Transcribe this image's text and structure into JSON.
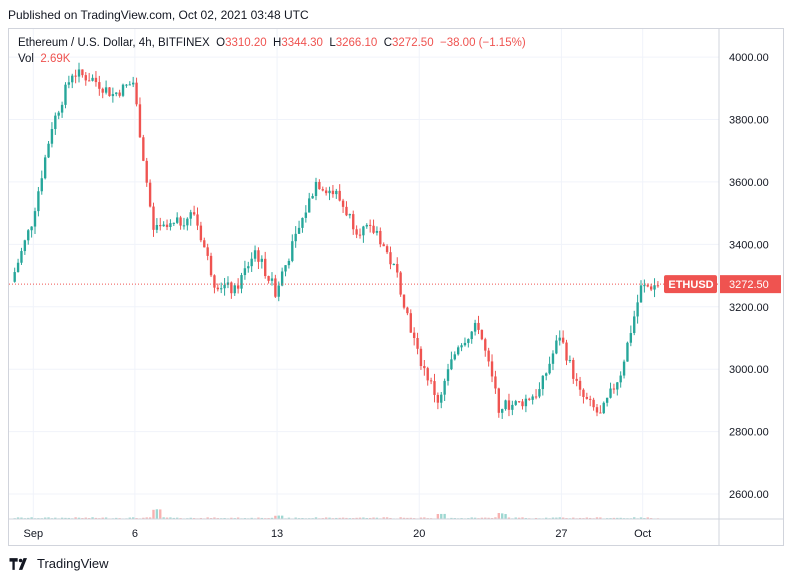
{
  "header": {
    "published": "Published on TradingView.com, Oct 02, 2021 03:48 UTC"
  },
  "legend": {
    "symbol": "Ethereum / U.S. Dollar, 4h, BITFINEX",
    "o_label": "O",
    "o_value": "3310.20",
    "h_label": "H",
    "h_value": "3344.30",
    "l_label": "L",
    "l_value": "3266.10",
    "c_label": "C",
    "c_value": "3272.50",
    "change": "−38.00 (−1.15%)",
    "vol_label": "Vol",
    "vol_value": "2.69K"
  },
  "footer": {
    "brand": "TradingView"
  },
  "colors": {
    "up": "#26a69a",
    "down": "#ef5350",
    "grid": "#f0f3fa",
    "border": "#d1d4dc",
    "text": "#131722"
  },
  "chart_data": {
    "type": "candlestick",
    "ylim": [
      2520,
      4090
    ],
    "yticks": [
      2600,
      2800,
      3000,
      3200,
      3400,
      3600,
      3800,
      4000
    ],
    "ytick_labels": [
      "2600.00",
      "2800.00",
      "3000.00",
      "3200.00",
      "3400.00",
      "3600.00",
      "3800.00",
      "4000.00"
    ],
    "xtick_labels": [
      "Sep",
      "6",
      "13",
      "20",
      "27",
      "Oct"
    ],
    "xtick_dates": [
      "2021-09-01",
      "2021-09-06",
      "2021-09-13",
      "2021-09-20",
      "2021-09-27",
      "2021-10-01"
    ],
    "x_start": "2021-08-31",
    "x_end": "2021-10-02",
    "last_price": {
      "symbol": "ETHUSD",
      "value": 3272.5,
      "label": "3272.50"
    },
    "close_series": {
      "dates": [
        "2021-08-31",
        "2021-09-01",
        "2021-09-02",
        "2021-09-03",
        "2021-09-04",
        "2021-09-05",
        "2021-09-06",
        "2021-09-07",
        "2021-09-08",
        "2021-09-09",
        "2021-09-10",
        "2021-09-11",
        "2021-09-12",
        "2021-09-13",
        "2021-09-14",
        "2021-09-15",
        "2021-09-16",
        "2021-09-17",
        "2021-09-18",
        "2021-09-19",
        "2021-09-20",
        "2021-09-21",
        "2021-09-22",
        "2021-09-23",
        "2021-09-24",
        "2021-09-25",
        "2021-09-26",
        "2021-09-27",
        "2021-09-28",
        "2021-09-29",
        "2021-09-30",
        "2021-10-01",
        "2021-10-02"
      ],
      "values": [
        3280,
        3470,
        3780,
        3950,
        3930,
        3880,
        3920,
        3440,
        3460,
        3500,
        3280,
        3250,
        3380,
        3250,
        3420,
        3600,
        3560,
        3450,
        3440,
        3300,
        3050,
        2900,
        3080,
        3140,
        2880,
        2890,
        2930,
        3110,
        2920,
        2850,
        2990,
        3260,
        3272.5
      ]
    },
    "volume_ylim": [
      0,
      8000
    ],
    "volume_peaks": [
      {
        "date": "2021-09-07",
        "value": 5500
      },
      {
        "date": "2021-09-13",
        "value": 2000
      },
      {
        "date": "2021-09-21",
        "value": 2800
      },
      {
        "date": "2021-09-24",
        "value": 3200
      }
    ]
  }
}
